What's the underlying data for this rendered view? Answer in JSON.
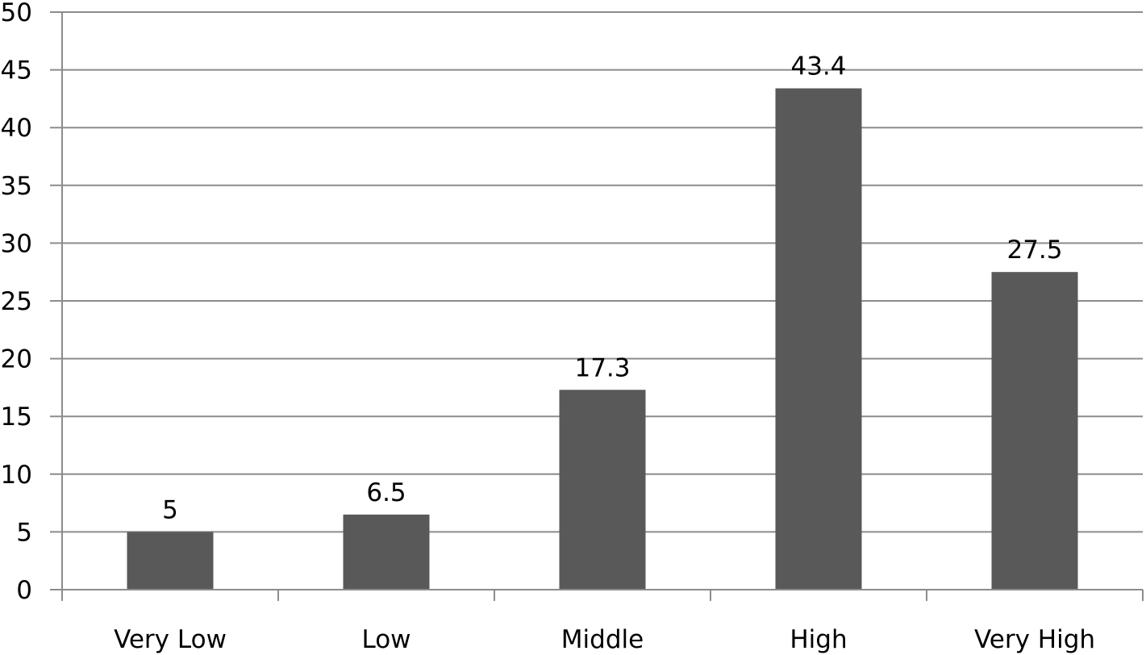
{
  "chart_data": {
    "type": "bar",
    "categories": [
      "Very Low",
      "Low",
      "Middle",
      "High",
      "Very High"
    ],
    "values": [
      5,
      6.5,
      17.3,
      43.4,
      27.5
    ],
    "value_labels": [
      "5",
      "6.5",
      "17.3",
      "43.4",
      "27.5"
    ],
    "ylim": [
      0,
      50
    ],
    "y_ticks": [
      "0",
      "5",
      "10",
      "15",
      "20",
      "25",
      "30",
      "35",
      "40",
      "45",
      "50"
    ],
    "grid": true,
    "legend": "none",
    "bar_color": "#595959",
    "grid_color": "#8c8c8c"
  }
}
